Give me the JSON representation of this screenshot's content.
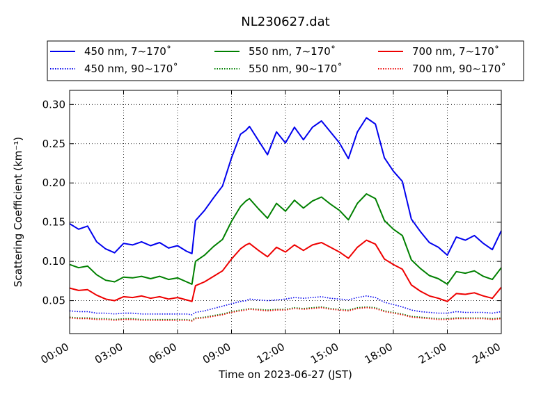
{
  "chart_data": {
    "type": "line",
    "title": "NL230627.dat",
    "xlabel": "Time on 2023-06-27 (JST)",
    "ylabel": "Scattering Coefficient (km⁻¹)",
    "x_unit": "hour",
    "xlim": [
      "00:00",
      "24:00"
    ],
    "ylim": [
      0.008,
      0.318
    ],
    "xticks": [
      "00:00",
      "03:00",
      "06:00",
      "09:00",
      "12:00",
      "15:00",
      "18:00",
      "21:00",
      "24:00"
    ],
    "yticks": [
      "0.05",
      "0.10",
      "0.15",
      "0.20",
      "0.25",
      "0.30"
    ],
    "grid": true,
    "legend_position": "top",
    "x": [
      0,
      0.5,
      1,
      1.5,
      2,
      2.5,
      3,
      3.5,
      4,
      4.5,
      5,
      5.5,
      6,
      6.5,
      6.8,
      7,
      7.5,
      8,
      8.5,
      9,
      9.5,
      9.8,
      10,
      10.5,
      11,
      11.5,
      12,
      12.5,
      13,
      13.5,
      14,
      14.5,
      15,
      15.5,
      16,
      16.5,
      17,
      17.5,
      18,
      18.5,
      19,
      19.5,
      20,
      20.5,
      21,
      21.5,
      22,
      22.5,
      23,
      23.5,
      24
    ],
    "series": [
      {
        "name": "450 nm, 7∼170˚",
        "color": "#0000ee",
        "style": "solid",
        "values": [
          0.148,
          0.141,
          0.145,
          0.125,
          0.116,
          0.111,
          0.123,
          0.121,
          0.125,
          0.12,
          0.124,
          0.117,
          0.12,
          0.113,
          0.11,
          0.152,
          0.165,
          0.181,
          0.196,
          0.232,
          0.262,
          0.267,
          0.272,
          0.254,
          0.236,
          0.265,
          0.251,
          0.271,
          0.255,
          0.271,
          0.279,
          0.265,
          0.251,
          0.231,
          0.265,
          0.283,
          0.275,
          0.232,
          0.215,
          0.202,
          0.154,
          0.138,
          0.124,
          0.118,
          0.108,
          0.131,
          0.127,
          0.133,
          0.123,
          0.115,
          0.139
        ]
      },
      {
        "name": "450 nm, 90∼170˚",
        "color": "#0000ee",
        "style": "dotted",
        "values": [
          0.037,
          0.036,
          0.036,
          0.034,
          0.034,
          0.033,
          0.034,
          0.034,
          0.033,
          0.033,
          0.033,
          0.033,
          0.033,
          0.033,
          0.032,
          0.035,
          0.037,
          0.04,
          0.043,
          0.046,
          0.049,
          0.05,
          0.052,
          0.051,
          0.05,
          0.051,
          0.052,
          0.054,
          0.053,
          0.054,
          0.055,
          0.053,
          0.052,
          0.051,
          0.054,
          0.056,
          0.054,
          0.048,
          0.045,
          0.042,
          0.038,
          0.036,
          0.035,
          0.034,
          0.034,
          0.036,
          0.035,
          0.035,
          0.035,
          0.034,
          0.036
        ]
      },
      {
        "name": "550 nm, 7∼170˚",
        "color": "#008000",
        "style": "solid",
        "values": [
          0.096,
          0.092,
          0.094,
          0.083,
          0.076,
          0.074,
          0.08,
          0.079,
          0.081,
          0.078,
          0.081,
          0.077,
          0.079,
          0.074,
          0.071,
          0.1,
          0.108,
          0.119,
          0.128,
          0.151,
          0.17,
          0.177,
          0.18,
          0.167,
          0.155,
          0.174,
          0.164,
          0.178,
          0.168,
          0.177,
          0.182,
          0.173,
          0.165,
          0.153,
          0.174,
          0.186,
          0.18,
          0.152,
          0.141,
          0.133,
          0.102,
          0.091,
          0.082,
          0.078,
          0.071,
          0.087,
          0.085,
          0.088,
          0.081,
          0.077,
          0.092
        ]
      },
      {
        "name": "550 nm, 90∼170˚",
        "color": "#008000",
        "style": "dotted",
        "values": [
          0.029,
          0.028,
          0.028,
          0.027,
          0.027,
          0.026,
          0.027,
          0.027,
          0.026,
          0.026,
          0.026,
          0.026,
          0.026,
          0.026,
          0.025,
          0.028,
          0.029,
          0.031,
          0.033,
          0.036,
          0.038,
          0.039,
          0.04,
          0.039,
          0.038,
          0.039,
          0.039,
          0.041,
          0.04,
          0.041,
          0.042,
          0.04,
          0.039,
          0.038,
          0.041,
          0.042,
          0.041,
          0.037,
          0.035,
          0.033,
          0.03,
          0.029,
          0.028,
          0.027,
          0.027,
          0.028,
          0.028,
          0.028,
          0.028,
          0.027,
          0.028
        ]
      },
      {
        "name": "700 nm, 7∼170˚",
        "color": "#ee0000",
        "style": "solid",
        "values": [
          0.066,
          0.063,
          0.064,
          0.057,
          0.052,
          0.05,
          0.055,
          0.054,
          0.056,
          0.053,
          0.055,
          0.052,
          0.054,
          0.051,
          0.049,
          0.069,
          0.074,
          0.081,
          0.088,
          0.103,
          0.116,
          0.121,
          0.123,
          0.114,
          0.106,
          0.118,
          0.112,
          0.121,
          0.114,
          0.121,
          0.124,
          0.118,
          0.112,
          0.104,
          0.118,
          0.127,
          0.122,
          0.103,
          0.096,
          0.09,
          0.07,
          0.062,
          0.056,
          0.053,
          0.049,
          0.059,
          0.058,
          0.06,
          0.056,
          0.053,
          0.067
        ]
      },
      {
        "name": "700 nm, 90∼170˚",
        "color": "#ee0000",
        "style": "dotted",
        "values": [
          0.028,
          0.027,
          0.027,
          0.026,
          0.026,
          0.025,
          0.026,
          0.026,
          0.025,
          0.025,
          0.025,
          0.025,
          0.025,
          0.025,
          0.024,
          0.027,
          0.028,
          0.03,
          0.032,
          0.035,
          0.037,
          0.038,
          0.039,
          0.038,
          0.037,
          0.038,
          0.038,
          0.04,
          0.039,
          0.04,
          0.041,
          0.039,
          0.038,
          0.037,
          0.04,
          0.041,
          0.04,
          0.036,
          0.034,
          0.032,
          0.029,
          0.028,
          0.027,
          0.026,
          0.026,
          0.027,
          0.027,
          0.027,
          0.027,
          0.026,
          0.027
        ]
      }
    ]
  }
}
